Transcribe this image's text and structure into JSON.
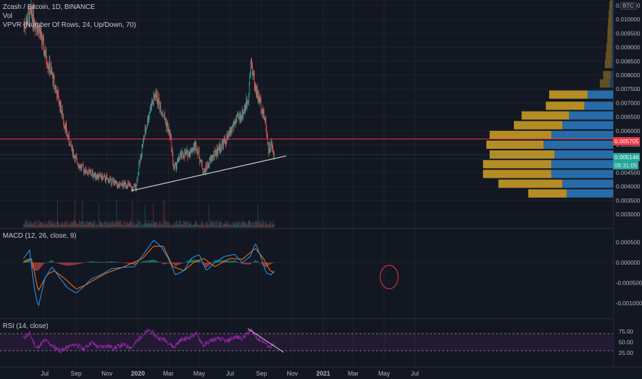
{
  "header": {
    "title": "Zcash / Bitcoin, 1D, BINANCE",
    "vol_label": "Vol",
    "vpvr_label": "VPVR (Number Of Rows, 24, Up/Down, 70)",
    "currency": "BTC"
  },
  "panes": {
    "macd_label": "MACD (12, 26, close, 9)",
    "rsi_label": "RSI (14, close)"
  },
  "price_badges": {
    "horizontal_line": "0.005705",
    "last_price": "0.005146",
    "countdown": "08:31:05"
  },
  "colors": {
    "background": "#131722",
    "up": "#26a69a",
    "down": "#ef5350",
    "hline": "#f23645",
    "trendline": "#d1d4dc",
    "macd_line": "#2196f3",
    "signal_line": "#ff6d00",
    "rsi_line": "#9c27b0",
    "vpvr_up": "#2a74b8",
    "vpvr_down": "#c89a26"
  },
  "chart_data": [
    {
      "type": "candlestick",
      "title": "Zcash / Bitcoin, 1D, BINANCE",
      "x": [
        "Jul",
        "Sep",
        "Nov",
        "2020",
        "Mar",
        "May",
        "Jul",
        "Sep",
        "Nov",
        "2021",
        "Mar",
        "May",
        "Jul"
      ],
      "ylim": [
        0.0025,
        0.0113
      ],
      "y_ticks": [
        "0.003000",
        "0.003500",
        "0.004000",
        "0.004500",
        "0.005000",
        "0.005500",
        "0.006000",
        "0.006500",
        "0.007000",
        "0.007500",
        "0.008000",
        "0.008500",
        "0.009000",
        "0.009500",
        "0.010000",
        "0.010500"
      ],
      "close_path": [
        [
          "2019-05-20",
          0.0098
        ],
        [
          "2019-06-05",
          0.0102
        ],
        [
          "2019-06-20",
          0.0096
        ],
        [
          "2019-07-01",
          0.0088
        ],
        [
          "2019-07-15",
          0.008
        ],
        [
          "2019-07-30",
          0.007
        ],
        [
          "2019-08-15",
          0.0058
        ],
        [
          "2019-08-30",
          0.005
        ],
        [
          "2019-09-10",
          0.0047
        ],
        [
          "2019-09-25",
          0.0045
        ],
        [
          "2019-10-10",
          0.0044
        ],
        [
          "2019-10-25",
          0.0043
        ],
        [
          "2019-11-10",
          0.0042
        ],
        [
          "2019-11-25",
          0.004
        ],
        [
          "2019-12-10",
          0.0041
        ],
        [
          "2019-12-20",
          0.0039
        ],
        [
          "2019-12-28",
          0.004
        ],
        [
          "2020-01-10",
          0.0055
        ],
        [
          "2020-01-25",
          0.0068
        ],
        [
          "2020-02-05",
          0.0073
        ],
        [
          "2020-02-20",
          0.0066
        ],
        [
          "2020-03-05",
          0.0058
        ],
        [
          "2020-03-12",
          0.0046
        ],
        [
          "2020-03-25",
          0.0051
        ],
        [
          "2020-04-10",
          0.0052
        ],
        [
          "2020-04-25",
          0.0055
        ],
        [
          "2020-05-10",
          0.0045
        ],
        [
          "2020-05-25",
          0.005
        ],
        [
          "2020-06-10",
          0.0054
        ],
        [
          "2020-06-25",
          0.0057
        ],
        [
          "2020-07-10",
          0.0063
        ],
        [
          "2020-07-25",
          0.0066
        ],
        [
          "2020-08-05",
          0.0071
        ],
        [
          "2020-08-12",
          0.0085
        ],
        [
          "2020-08-20",
          0.0075
        ],
        [
          "2020-09-01",
          0.0069
        ],
        [
          "2020-09-10",
          0.0062
        ],
        [
          "2020-09-15",
          0.0053
        ],
        [
          "2020-09-20",
          0.0055
        ],
        [
          "2020-09-26",
          0.005146
        ]
      ],
      "annotations": {
        "horizontal_line": 0.005705,
        "trendline": [
          [
            "2019-12-20",
            0.00385
          ],
          [
            "2020-10-20",
            0.0051
          ]
        ]
      }
    },
    {
      "type": "histogram",
      "title": "VPVR (Number Of Rows, 24, Up/Down, 70)",
      "rows": [
        {
          "price": 0.0108,
          "up": 0.006,
          "down": 0.02
        },
        {
          "price": 0.0105,
          "up": 0.008,
          "down": 0.025
        },
        {
          "price": 0.0102,
          "up": 0.01,
          "down": 0.03
        },
        {
          "price": 0.0099,
          "up": 0.01,
          "down": 0.035
        },
        {
          "price": 0.0096,
          "up": 0.01,
          "down": 0.04
        },
        {
          "price": 0.0093,
          "up": 0.008,
          "down": 0.045
        },
        {
          "price": 0.009,
          "up": 0.01,
          "down": 0.05
        },
        {
          "price": 0.0087,
          "up": 0.012,
          "down": 0.055
        },
        {
          "price": 0.0084,
          "up": 0.015,
          "down": 0.06
        },
        {
          "price": 0.008,
          "up": 0.02,
          "down": 0.07
        },
        {
          "price": 0.0077,
          "up": 0.03,
          "down": 0.09
        },
        {
          "price": 0.0073,
          "up": 0.23,
          "down": 0.35
        },
        {
          "price": 0.0069,
          "up": 0.26,
          "down": 0.35
        },
        {
          "price": 0.00655,
          "up": 0.4,
          "down": 0.43
        },
        {
          "price": 0.0062,
          "up": 0.46,
          "down": 0.44
        },
        {
          "price": 0.00585,
          "up": 0.56,
          "down": 0.56
        },
        {
          "price": 0.0055,
          "up": 0.63,
          "down": 0.52
        },
        {
          "price": 0.00515,
          "up": 0.53,
          "down": 0.59
        },
        {
          "price": 0.0048,
          "up": 0.56,
          "down": 0.62
        },
        {
          "price": 0.00445,
          "up": 0.56,
          "down": 0.62
        },
        {
          "price": 0.0041,
          "up": 0.46,
          "down": 0.58
        },
        {
          "price": 0.00375,
          "up": 0.42,
          "down": 0.35
        }
      ]
    },
    {
      "type": "line",
      "title": "MACD (12, 26, close, 9)",
      "ylim": [
        -0.0013,
        0.00072
      ],
      "y_ticks": [
        "0.000500",
        "0.000000",
        "-0.000500",
        "-0.001000"
      ],
      "series": [
        {
          "values": [
            [
              "2019-05-20",
              0.0001
            ],
            [
              "2019-06-01",
              0.0003
            ],
            [
              "2019-06-10",
              -0.0006
            ],
            [
              "2019-06-18",
              -0.0011
            ],
            [
              "2019-07-01",
              -0.0004
            ],
            [
              "2019-07-15",
              -0.0001
            ],
            [
              "2019-08-01",
              -0.0004
            ],
            [
              "2019-08-15",
              -0.00062
            ],
            [
              "2019-09-01",
              -0.00075
            ],
            [
              "2019-09-15",
              -0.0006
            ],
            [
              "2019-10-01",
              -0.0004
            ],
            [
              "2019-10-20",
              -0.0003
            ],
            [
              "2019-11-10",
              -0.00015
            ],
            [
              "2019-12-01",
              -0.00012
            ],
            [
              "2019-12-25",
              -0.0001
            ],
            [
              "2020-01-15",
              0.00025
            ],
            [
              "2020-02-01",
              0.00055
            ],
            [
              "2020-02-15",
              0.0004
            ],
            [
              "2020-03-01",
              0.0001
            ],
            [
              "2020-03-15",
              -0.0003
            ],
            [
              "2020-04-01",
              -0.0002
            ],
            [
              "2020-04-15",
              0.0001
            ],
            [
              "2020-05-01",
              0.0002
            ],
            [
              "2020-05-15",
              -0.0002
            ],
            [
              "2020-06-01",
              0.0
            ],
            [
              "2020-06-20",
              0.00015
            ],
            [
              "2020-07-10",
              0.0002
            ],
            [
              "2020-07-25",
              0.0
            ],
            [
              "2020-08-10",
              0.00015
            ],
            [
              "2020-08-20",
              0.00048
            ],
            [
              "2020-09-01",
              0.0001
            ],
            [
              "2020-09-10",
              -0.00025
            ],
            [
              "2020-09-20",
              -0.0003
            ],
            [
              "2020-09-26",
              -0.0002
            ]
          ]
        },
        {
          "values": [
            [
              "2019-05-20",
              0.0
            ],
            [
              "2019-06-05",
              0.0001
            ],
            [
              "2019-06-18",
              -0.0007
            ],
            [
              "2019-07-05",
              -0.0003
            ],
            [
              "2019-07-20",
              -0.0002
            ],
            [
              "2019-08-10",
              -0.0004
            ],
            [
              "2019-09-01",
              -0.00065
            ],
            [
              "2019-09-20",
              -0.00055
            ],
            [
              "2019-10-10",
              -0.0004
            ],
            [
              "2019-11-01",
              -0.00025
            ],
            [
              "2019-12-01",
              -0.00012
            ],
            [
              "2020-01-10",
              0.0001
            ],
            [
              "2020-02-01",
              0.0004
            ],
            [
              "2020-02-20",
              0.0004
            ],
            [
              "2020-03-10",
              -0.0001
            ],
            [
              "2020-04-01",
              -0.0002
            ],
            [
              "2020-04-20",
              0.0
            ],
            [
              "2020-05-10",
              0.0001
            ],
            [
              "2020-06-01",
              -0.0001
            ],
            [
              "2020-07-01",
              0.0001
            ],
            [
              "2020-07-25",
              8e-05
            ],
            [
              "2020-08-20",
              0.00035
            ],
            [
              "2020-09-05",
              0.0001
            ],
            [
              "2020-09-18",
              -0.0002
            ],
            [
              "2020-09-26",
              -0.00025
            ]
          ]
        }
      ]
    },
    {
      "type": "line",
      "title": "RSI (14, close)",
      "ylim": [
        0,
        100
      ],
      "y_ticks": [
        "75.00",
        "50.00",
        "25.00"
      ],
      "bands": [
        30,
        70
      ],
      "series": [
        {
          "values": [
            [
              "2019-05-20",
              60
            ],
            [
              "2019-06-01",
              70
            ],
            [
              "2019-06-15",
              35
            ],
            [
              "2019-07-01",
              55
            ],
            [
              "2019-07-15",
              42
            ],
            [
              "2019-08-01",
              30
            ],
            [
              "2019-08-15",
              38
            ],
            [
              "2019-09-01",
              45
            ],
            [
              "2019-09-15",
              33
            ],
            [
              "2019-10-01",
              50
            ],
            [
              "2019-10-15",
              38
            ],
            [
              "2019-11-01",
              42
            ],
            [
              "2019-11-15",
              36
            ],
            [
              "2019-12-01",
              44
            ],
            [
              "2019-12-20",
              38
            ],
            [
              "2020-01-10",
              68
            ],
            [
              "2020-01-25",
              78
            ],
            [
              "2020-02-10",
              60
            ],
            [
              "2020-02-25",
              55
            ],
            [
              "2020-03-12",
              38
            ],
            [
              "2020-03-25",
              55
            ],
            [
              "2020-04-10",
              60
            ],
            [
              "2020-04-25",
              70
            ],
            [
              "2020-05-10",
              42
            ],
            [
              "2020-05-25",
              55
            ],
            [
              "2020-06-10",
              58
            ],
            [
              "2020-06-25",
              52
            ],
            [
              "2020-07-10",
              62
            ],
            [
              "2020-07-25",
              60
            ],
            [
              "2020-08-12",
              78
            ],
            [
              "2020-08-25",
              58
            ],
            [
              "2020-09-05",
              52
            ],
            [
              "2020-09-15",
              40
            ],
            [
              "2020-09-26",
              42
            ]
          ]
        }
      ],
      "annotations": {
        "trendline": [
          [
            "2020-08-05",
            82
          ],
          [
            "2020-10-15",
            26
          ]
        ]
      }
    }
  ]
}
